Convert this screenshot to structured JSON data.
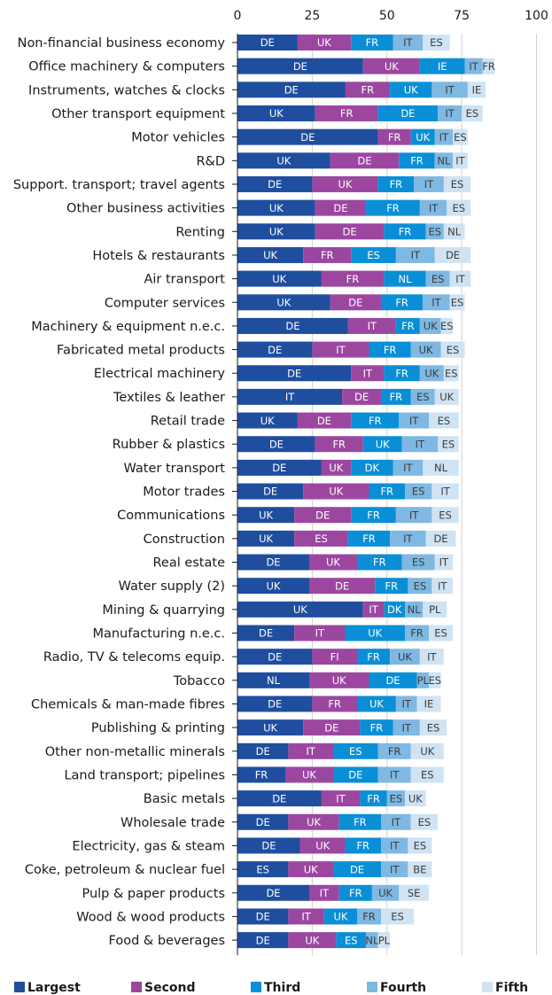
{
  "chart_data": {
    "type": "bar",
    "orientation": "horizontal",
    "stacked": true,
    "title": "",
    "xlabel": "",
    "ylabel": "",
    "xlim": [
      0,
      100
    ],
    "xticks": [
      0,
      25,
      50,
      75,
      100
    ],
    "grid": true,
    "legend_position": "bottom",
    "series": [
      {
        "name": "Largest",
        "color": "#1f4e9e"
      },
      {
        "name": "Second",
        "color": "#9b47a0"
      },
      {
        "name": "Third",
        "color": "#0a8fd6"
      },
      {
        "name": "Fourth",
        "color": "#7fb8e2"
      },
      {
        "name": "Fifth",
        "color": "#cfe3f3"
      }
    ],
    "rows": [
      {
        "category": "Non-financial business economy",
        "values": [
          20,
          18,
          14,
          10,
          9
        ],
        "labels": [
          "DE",
          "UK",
          "FR",
          "IT",
          "ES"
        ]
      },
      {
        "category": "Office machinery & computers",
        "values": [
          42,
          19,
          15,
          6,
          4
        ],
        "labels": [
          "DE",
          "UK",
          "IE",
          "IT",
          "FR"
        ]
      },
      {
        "category": "Instruments, watches & clocks",
        "values": [
          36,
          15,
          14,
          12,
          6
        ],
        "labels": [
          "DE",
          "FR",
          "UK",
          "IT",
          "IE"
        ]
      },
      {
        "category": "Other transport equipment",
        "values": [
          26,
          21,
          20,
          8,
          7
        ],
        "labels": [
          "UK",
          "FR",
          "DE",
          "IT",
          "ES"
        ]
      },
      {
        "category": "Motor vehicles",
        "values": [
          47,
          11,
          8,
          6,
          5
        ],
        "labels": [
          "DE",
          "FR",
          "UK",
          "IT",
          "ES"
        ]
      },
      {
        "category": "R&D",
        "values": [
          31,
          23,
          12,
          6,
          5
        ],
        "labels": [
          "UK",
          "DE",
          "FR",
          "NL",
          "IT"
        ]
      },
      {
        "category": "Support. transport; travel agents",
        "values": [
          25,
          22,
          12,
          10,
          9
        ],
        "labels": [
          "DE",
          "UK",
          "FR",
          "IT",
          "ES"
        ]
      },
      {
        "category": "Other business activities",
        "values": [
          26,
          17,
          18,
          9,
          8
        ],
        "labels": [
          "UK",
          "DE",
          "FR",
          "IT",
          "ES"
        ]
      },
      {
        "category": "Renting",
        "values": [
          26,
          23,
          14,
          6,
          7
        ],
        "labels": [
          "UK",
          "DE",
          "FR",
          "ES",
          "NL"
        ]
      },
      {
        "category": "Hotels & restaurants",
        "values": [
          22,
          16,
          15,
          13,
          12
        ],
        "labels": [
          "UK",
          "FR",
          "ES",
          "IT",
          "DE"
        ]
      },
      {
        "category": "Air transport",
        "values": [
          28,
          21,
          14,
          8,
          7
        ],
        "labels": [
          "UK",
          "FR",
          "NL",
          "ES",
          "IT"
        ]
      },
      {
        "category": "Computer services",
        "values": [
          31,
          17,
          14,
          9,
          5
        ],
        "labels": [
          "UK",
          "DE",
          "FR",
          "IT",
          "ES"
        ]
      },
      {
        "category": "Machinery & equipment n.e.c.",
        "values": [
          37,
          16,
          8,
          7,
          4
        ],
        "labels": [
          "DE",
          "IT",
          "FR",
          "UK",
          "ES"
        ]
      },
      {
        "category": "Fabricated metal products",
        "values": [
          25,
          19,
          14,
          10,
          8
        ],
        "labels": [
          "DE",
          "IT",
          "FR",
          "UK",
          "ES"
        ]
      },
      {
        "category": "Electrical machinery",
        "values": [
          38,
          11,
          12,
          8,
          5
        ],
        "labels": [
          "DE",
          "IT",
          "FR",
          "UK",
          "ES"
        ]
      },
      {
        "category": "Textiles & leather",
        "values": [
          35,
          13,
          10,
          8,
          8
        ],
        "labels": [
          "IT",
          "DE",
          "FR",
          "ES",
          "UK"
        ]
      },
      {
        "category": "Retail trade",
        "values": [
          20,
          18,
          16,
          10,
          10
        ],
        "labels": [
          "UK",
          "DE",
          "FR",
          "IT",
          "ES"
        ]
      },
      {
        "category": "Rubber & plastics",
        "values": [
          26,
          16,
          13,
          12,
          7
        ],
        "labels": [
          "DE",
          "FR",
          "UK",
          "IT",
          "ES"
        ]
      },
      {
        "category": "Water transport",
        "values": [
          28,
          10,
          14,
          10,
          12
        ],
        "labels": [
          "DE",
          "UK",
          "DK",
          "IT",
          "NL"
        ]
      },
      {
        "category": "Motor trades",
        "values": [
          22,
          22,
          12,
          9,
          9
        ],
        "labels": [
          "DE",
          "UK",
          "FR",
          "ES",
          "IT"
        ]
      },
      {
        "category": "Communications",
        "values": [
          19,
          19,
          15,
          12,
          9
        ],
        "labels": [
          "UK",
          "DE",
          "FR",
          "IT",
          "ES"
        ]
      },
      {
        "category": "Construction",
        "values": [
          19,
          18,
          14,
          12,
          10
        ],
        "labels": [
          "UK",
          "ES",
          "FR",
          "IT",
          "DE"
        ]
      },
      {
        "category": "Real estate",
        "values": [
          24,
          16,
          15,
          11,
          6
        ],
        "labels": [
          "DE",
          "UK",
          "FR",
          "ES",
          "IT"
        ]
      },
      {
        "category": "Water supply (2)",
        "values": [
          24,
          22,
          11,
          8,
          7
        ],
        "labels": [
          "UK",
          "DE",
          "FR",
          "ES",
          "IT"
        ]
      },
      {
        "category": "Mining & quarrying",
        "values": [
          42,
          7,
          7,
          6,
          8
        ],
        "labels": [
          "UK",
          "IT",
          "DK",
          "NL",
          "PL"
        ]
      },
      {
        "category": "Manufacturing n.e.c.",
        "values": [
          19,
          17,
          20,
          8,
          8
        ],
        "labels": [
          "DE",
          "IT",
          "UK",
          "FR",
          "ES"
        ]
      },
      {
        "category": "Radio, TV & telecoms equip.",
        "values": [
          25,
          15,
          11,
          10,
          8
        ],
        "labels": [
          "DE",
          "FI",
          "FR",
          "UK",
          "IT"
        ]
      },
      {
        "category": "Tobacco",
        "values": [
          24,
          20,
          16,
          4,
          4
        ],
        "labels": [
          "NL",
          "UK",
          "DE",
          "PL",
          "ES"
        ]
      },
      {
        "category": "Chemicals & man-made fibres",
        "values": [
          25,
          15,
          13,
          7,
          8
        ],
        "labels": [
          "DE",
          "FR",
          "UK",
          "IT",
          "IE"
        ]
      },
      {
        "category": "Publishing & printing",
        "values": [
          22,
          19,
          11,
          9,
          9
        ],
        "labels": [
          "UK",
          "DE",
          "FR",
          "IT",
          "ES"
        ]
      },
      {
        "category": "Other non-metallic minerals",
        "values": [
          17,
          15,
          15,
          11,
          11
        ],
        "labels": [
          "DE",
          "IT",
          "ES",
          "FR",
          "UK"
        ]
      },
      {
        "category": "Land transport; pipelines",
        "values": [
          16,
          16,
          15,
          11,
          11
        ],
        "labels": [
          "FR",
          "UK",
          "DE",
          "IT",
          "ES"
        ]
      },
      {
        "category": "Basic metals",
        "values": [
          28,
          13,
          9,
          6,
          7
        ],
        "labels": [
          "DE",
          "IT",
          "FR",
          "ES",
          "UK"
        ]
      },
      {
        "category": "Wholesale trade",
        "values": [
          17,
          17,
          14,
          10,
          9
        ],
        "labels": [
          "DE",
          "UK",
          "FR",
          "IT",
          "ES"
        ]
      },
      {
        "category": "Electricity, gas & steam",
        "values": [
          21,
          15,
          12,
          9,
          8
        ],
        "labels": [
          "DE",
          "UK",
          "FR",
          "IT",
          "ES"
        ]
      },
      {
        "category": "Coke, petroleum & nuclear fuel",
        "values": [
          17,
          15,
          16,
          9,
          8
        ],
        "labels": [
          "ES",
          "UK",
          "DE",
          "IT",
          "BE"
        ]
      },
      {
        "category": "Pulp & paper products",
        "values": [
          24,
          10,
          11,
          9,
          10
        ],
        "labels": [
          "DE",
          "IT",
          "FR",
          "UK",
          "SE"
        ]
      },
      {
        "category": "Wood & wood products",
        "values": [
          17,
          12,
          11,
          8,
          11
        ],
        "labels": [
          "DE",
          "IT",
          "UK",
          "FR",
          "ES"
        ]
      },
      {
        "category": "Food & beverages",
        "values": [
          17,
          16,
          10,
          4,
          4
        ],
        "labels": [
          "DE",
          "UK",
          "ES",
          "NL",
          "PL"
        ]
      }
    ]
  }
}
